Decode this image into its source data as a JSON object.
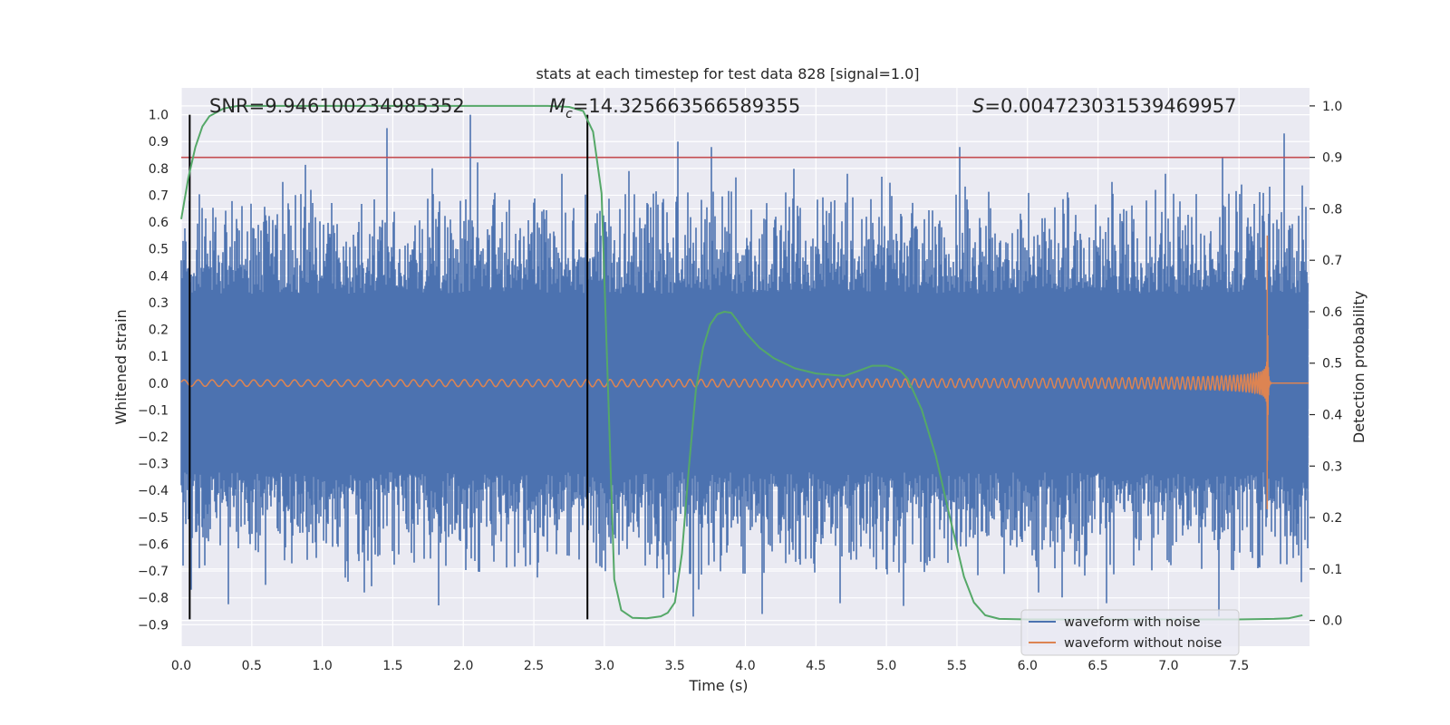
{
  "chart_data": {
    "type": "line",
    "title": "stats at each timestep for test data 828 [signal=1.0]",
    "xlabel": "Time (s)",
    "ylabel": "Whitened strain",
    "y2label": "Detection probability",
    "xlim": [
      0.0,
      8.0
    ],
    "ylim": [
      -0.98,
      1.1
    ],
    "y2lim": [
      -0.05,
      1.035
    ],
    "xticks": [
      0.0,
      0.5,
      1.0,
      1.5,
      2.0,
      2.5,
      3.0,
      3.5,
      4.0,
      4.5,
      5.0,
      5.5,
      6.0,
      6.5,
      7.0,
      7.5
    ],
    "xtick_labels": [
      "0.0",
      "0.5",
      "1.0",
      "1.5",
      "2.0",
      "2.5",
      "3.0",
      "3.5",
      "4.0",
      "4.5",
      "5.0",
      "5.5",
      "6.0",
      "6.5",
      "7.0",
      "7.5"
    ],
    "yticks": [
      -0.9,
      -0.8,
      -0.7,
      -0.6,
      -0.5,
      -0.4,
      -0.3,
      -0.2,
      -0.1,
      0.0,
      0.1,
      0.2,
      0.3,
      0.4,
      0.5,
      0.6,
      0.7,
      0.8,
      0.9,
      1.0
    ],
    "ytick_labels": [
      "−0.9",
      "−0.8",
      "−0.7",
      "−0.6",
      "−0.5",
      "−0.4",
      "−0.3",
      "−0.2",
      "−0.1",
      "0.0",
      "0.1",
      "0.2",
      "0.3",
      "0.4",
      "0.5",
      "0.6",
      "0.7",
      "0.8",
      "0.9",
      "1.0"
    ],
    "y2ticks": [
      0.0,
      0.1,
      0.2,
      0.3,
      0.4,
      0.5,
      0.6,
      0.7,
      0.8,
      0.9,
      1.0
    ],
    "y2tick_labels": [
      "0.0",
      "0.1",
      "0.2",
      "0.3",
      "0.4",
      "0.5",
      "0.6",
      "0.7",
      "0.8",
      "0.9",
      "1.0"
    ],
    "grid": true,
    "legend_placement": "lower-right",
    "annotations": {
      "snr": "SNR=9.946100234985352",
      "mc_symbol": "M",
      "mc_sub": "c",
      "mc_value": "=14.325663566589355",
      "s_symbol": "S",
      "s_value": "=0.004723031539469957"
    },
    "threshold": {
      "axis": "right",
      "value": 0.9,
      "color": "#c44e52"
    },
    "markers": {
      "x": [
        0.06,
        2.88
      ],
      "ymin": -0.88,
      "ymax": 1.0,
      "color": "#000000"
    },
    "series": [
      {
        "name": "waveform with noise",
        "color": "#4c72b0",
        "axis": "left",
        "kind": "noise",
        "typical_amplitude": 0.35,
        "spikes": [
          {
            "x": 1.46,
            "y": 0.95
          },
          {
            "x": 2.05,
            "y": 1.0
          },
          {
            "x": 3.52,
            "y": 0.9
          },
          {
            "x": 3.76,
            "y": 0.88
          },
          {
            "x": 5.52,
            "y": 0.88
          },
          {
            "x": 7.82,
            "y": 0.93
          },
          {
            "x": 3.63,
            "y": -0.87
          },
          {
            "x": 4.12,
            "y": -0.86
          },
          {
            "x": 6.56,
            "y": -0.82
          },
          {
            "x": 7.36,
            "y": -0.87
          },
          {
            "x": 1.3,
            "y": -0.78
          },
          {
            "x": 0.07,
            "y": -0.77
          },
          {
            "x": 0.72,
            "y": 0.75
          },
          {
            "x": 1.78,
            "y": 0.8
          },
          {
            "x": 2.7,
            "y": 0.78
          },
          {
            "x": 4.72,
            "y": 0.78
          },
          {
            "x": 6.98,
            "y": 0.78
          },
          {
            "x": 1.18,
            "y": -0.74
          },
          {
            "x": 3.42,
            "y": -0.8
          },
          {
            "x": 5.12,
            "y": -0.83
          },
          {
            "x": 6.08,
            "y": -0.78
          },
          {
            "x": 4.67,
            "y": -0.82
          },
          {
            "x": 0.92,
            "y": 0.72
          },
          {
            "x": 6.6,
            "y": 0.75
          },
          {
            "x": 7.52,
            "y": 0.74
          }
        ]
      },
      {
        "name": "waveform without noise",
        "color": "#dd8452",
        "axis": "left",
        "kind": "chirp",
        "merger_time": 7.7,
        "peak_amplitude": 0.55,
        "min_amplitude": -0.47,
        "base_amplitude": 0.012
      },
      {
        "name": "detection probability",
        "color": "#55a868",
        "axis": "right",
        "kind": "curve",
        "x": [
          0.0,
          0.05,
          0.1,
          0.15,
          0.2,
          0.3,
          0.4,
          0.6,
          1.0,
          2.0,
          2.6,
          2.75,
          2.85,
          2.92,
          2.98,
          3.02,
          3.07,
          3.12,
          3.2,
          3.3,
          3.4,
          3.45,
          3.5,
          3.55,
          3.6,
          3.65,
          3.7,
          3.75,
          3.8,
          3.85,
          3.9,
          3.95,
          4.0,
          4.1,
          4.2,
          4.35,
          4.5,
          4.7,
          4.8,
          4.9,
          5.0,
          5.1,
          5.15,
          5.25,
          5.35,
          5.45,
          5.55,
          5.62,
          5.7,
          5.8,
          6.0,
          6.5,
          7.0,
          7.5,
          7.75,
          7.85,
          7.95
        ],
        "y": [
          0.78,
          0.86,
          0.92,
          0.96,
          0.98,
          0.995,
          1.0,
          1.0,
          1.0,
          1.0,
          1.0,
          0.998,
          0.99,
          0.95,
          0.83,
          0.5,
          0.08,
          0.02,
          0.005,
          0.004,
          0.008,
          0.015,
          0.035,
          0.13,
          0.3,
          0.45,
          0.53,
          0.575,
          0.595,
          0.6,
          0.598,
          0.58,
          0.56,
          0.53,
          0.51,
          0.49,
          0.48,
          0.475,
          0.485,
          0.495,
          0.495,
          0.485,
          0.47,
          0.41,
          0.32,
          0.2,
          0.085,
          0.035,
          0.01,
          0.003,
          0.002,
          0.002,
          0.002,
          0.002,
          0.003,
          0.004,
          0.01
        ]
      }
    ]
  }
}
